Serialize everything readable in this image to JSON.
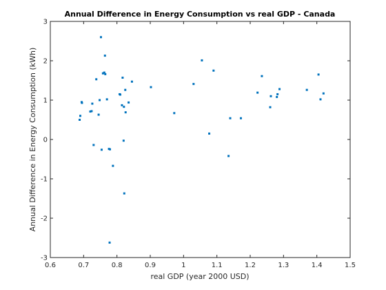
{
  "chart_data": {
    "type": "scatter",
    "title": "Annual Difference in Energy Consumption vs real GDP - Canada",
    "xlabel": "real GDP (year 2000 USD)",
    "ylabel": "Annual Difference in Energy Consumption (kWh)",
    "xlim": [
      0.6,
      1.5
    ],
    "ylim": [
      -3,
      3
    ],
    "xticks": [
      "0.6",
      "0.7",
      "0.8",
      "0.9",
      "1",
      "1.1",
      "1.2",
      "1.3",
      "1.4",
      "1.5"
    ],
    "yticks": [
      "-3",
      "-2",
      "-1",
      "0",
      "1",
      "2",
      "3"
    ],
    "grid": false,
    "marker_color": "#0072bd",
    "points": [
      {
        "x": 0.688,
        "y": 0.5
      },
      {
        "x": 0.69,
        "y": 0.6
      },
      {
        "x": 0.694,
        "y": 0.95
      },
      {
        "x": 0.695,
        "y": 0.93
      },
      {
        "x": 0.72,
        "y": 0.71
      },
      {
        "x": 0.724,
        "y": 0.72
      },
      {
        "x": 0.726,
        "y": 0.91
      },
      {
        "x": 0.73,
        "y": -0.14
      },
      {
        "x": 0.738,
        "y": 1.53
      },
      {
        "x": 0.745,
        "y": 0.63
      },
      {
        "x": 0.748,
        "y": 1.0
      },
      {
        "x": 0.752,
        "y": 2.6
      },
      {
        "x": 0.754,
        "y": -0.26
      },
      {
        "x": 0.758,
        "y": 1.68
      },
      {
        "x": 0.762,
        "y": 1.7
      },
      {
        "x": 0.764,
        "y": 2.13
      },
      {
        "x": 0.765,
        "y": 1.66
      },
      {
        "x": 0.77,
        "y": 1.02
      },
      {
        "x": 0.776,
        "y": -0.24
      },
      {
        "x": 0.778,
        "y": -2.62
      },
      {
        "x": 0.779,
        "y": -0.25
      },
      {
        "x": 0.788,
        "y": -0.67
      },
      {
        "x": 0.808,
        "y": 1.15
      },
      {
        "x": 0.81,
        "y": 1.14
      },
      {
        "x": 0.815,
        "y": 0.87
      },
      {
        "x": 0.817,
        "y": 1.57
      },
      {
        "x": 0.82,
        "y": -0.03
      },
      {
        "x": 0.821,
        "y": 0.83
      },
      {
        "x": 0.822,
        "y": -1.37
      },
      {
        "x": 0.825,
        "y": 1.26
      },
      {
        "x": 0.826,
        "y": 0.69
      },
      {
        "x": 0.835,
        "y": 0.94
      },
      {
        "x": 0.845,
        "y": 1.47
      },
      {
        "x": 0.902,
        "y": 1.33
      },
      {
        "x": 0.972,
        "y": 0.67
      },
      {
        "x": 1.03,
        "y": 1.41
      },
      {
        "x": 1.055,
        "y": 2.01
      },
      {
        "x": 1.077,
        "y": 0.15
      },
      {
        "x": 1.09,
        "y": 1.75
      },
      {
        "x": 1.135,
        "y": -0.42
      },
      {
        "x": 1.14,
        "y": 0.54
      },
      {
        "x": 1.172,
        "y": 0.54
      },
      {
        "x": 1.222,
        "y": 1.19
      },
      {
        "x": 1.235,
        "y": 1.61
      },
      {
        "x": 1.26,
        "y": 0.82
      },
      {
        "x": 1.262,
        "y": 1.1
      },
      {
        "x": 1.28,
        "y": 1.08
      },
      {
        "x": 1.282,
        "y": 1.15
      },
      {
        "x": 1.288,
        "y": 1.28
      },
      {
        "x": 1.37,
        "y": 1.26
      },
      {
        "x": 1.405,
        "y": 1.65
      },
      {
        "x": 1.411,
        "y": 1.02
      },
      {
        "x": 1.42,
        "y": 1.17
      }
    ]
  }
}
